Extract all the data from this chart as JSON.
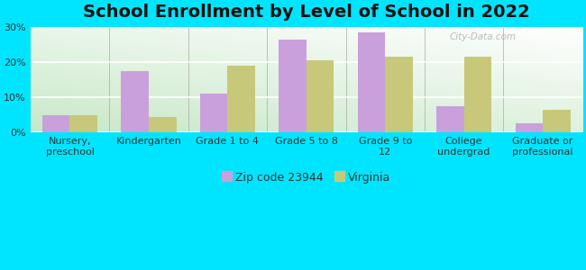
{
  "title": "School Enrollment by Level of School in 2022",
  "categories": [
    "Nursery,\npreschool",
    "Kindergarten",
    "Grade 1 to 4",
    "Grade 5 to 8",
    "Grade 9 to\n12",
    "College\nundergrad",
    "Graduate or\nprofessional"
  ],
  "zip_values": [
    5.0,
    17.5,
    11.0,
    26.5,
    28.5,
    7.5,
    2.5
  ],
  "virginia_values": [
    5.0,
    4.5,
    19.0,
    20.5,
    21.5,
    21.5,
    6.5
  ],
  "zip_color": "#c9a0dc",
  "virginia_color": "#c8c87a",
  "background_outer": "#00e5ff",
  "background_inner_top": "#ffffff",
  "background_inner_bottom": "#c8e8c8",
  "ylim": [
    0,
    30
  ],
  "yticks": [
    0,
    10,
    20,
    30
  ],
  "ytick_labels": [
    "0%",
    "10%",
    "20%",
    "30%"
  ],
  "legend_zip_label": "Zip code 23944",
  "legend_va_label": "Virginia",
  "bar_width": 0.35,
  "title_fontsize": 14,
  "tick_fontsize": 8,
  "legend_fontsize": 9,
  "watermark": "City-Data.com"
}
